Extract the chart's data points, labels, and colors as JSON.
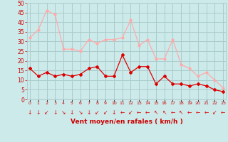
{
  "hours": [
    0,
    1,
    2,
    3,
    4,
    5,
    6,
    7,
    8,
    9,
    10,
    11,
    12,
    13,
    14,
    15,
    16,
    17,
    18,
    19,
    20,
    21,
    22,
    23
  ],
  "wind_avg": [
    16,
    12,
    14,
    12,
    13,
    12,
    13,
    16,
    17,
    12,
    12,
    23,
    14,
    17,
    17,
    8,
    12,
    8,
    8,
    7,
    8,
    7,
    5,
    4
  ],
  "wind_gust": [
    32,
    36,
    46,
    44,
    26,
    26,
    25,
    31,
    29,
    31,
    31,
    32,
    41,
    28,
    31,
    21,
    21,
    31,
    18,
    16,
    12,
    14,
    10,
    6
  ],
  "bg_color": "#cceaea",
  "grid_color": "#aacccc",
  "avg_color": "#dd0000",
  "gust_color": "#ffaaaa",
  "xlabel": "Vent moyen/en rafales ( km/h )",
  "xlabel_color": "#cc0000",
  "tick_color": "#cc0000",
  "ylim": [
    0,
    50
  ],
  "yticks": [
    0,
    5,
    10,
    15,
    20,
    25,
    30,
    35,
    40,
    45,
    50
  ],
  "arrow_chars": [
    "↓",
    "↓",
    "↙",
    "↓",
    "↘",
    "↓",
    "↘",
    "↓",
    "↙",
    "↙",
    "↓",
    "←",
    "↙",
    "←",
    "←",
    "↖",
    "↖",
    "←",
    "↖",
    "←",
    "←",
    "←",
    "↙",
    "←"
  ]
}
